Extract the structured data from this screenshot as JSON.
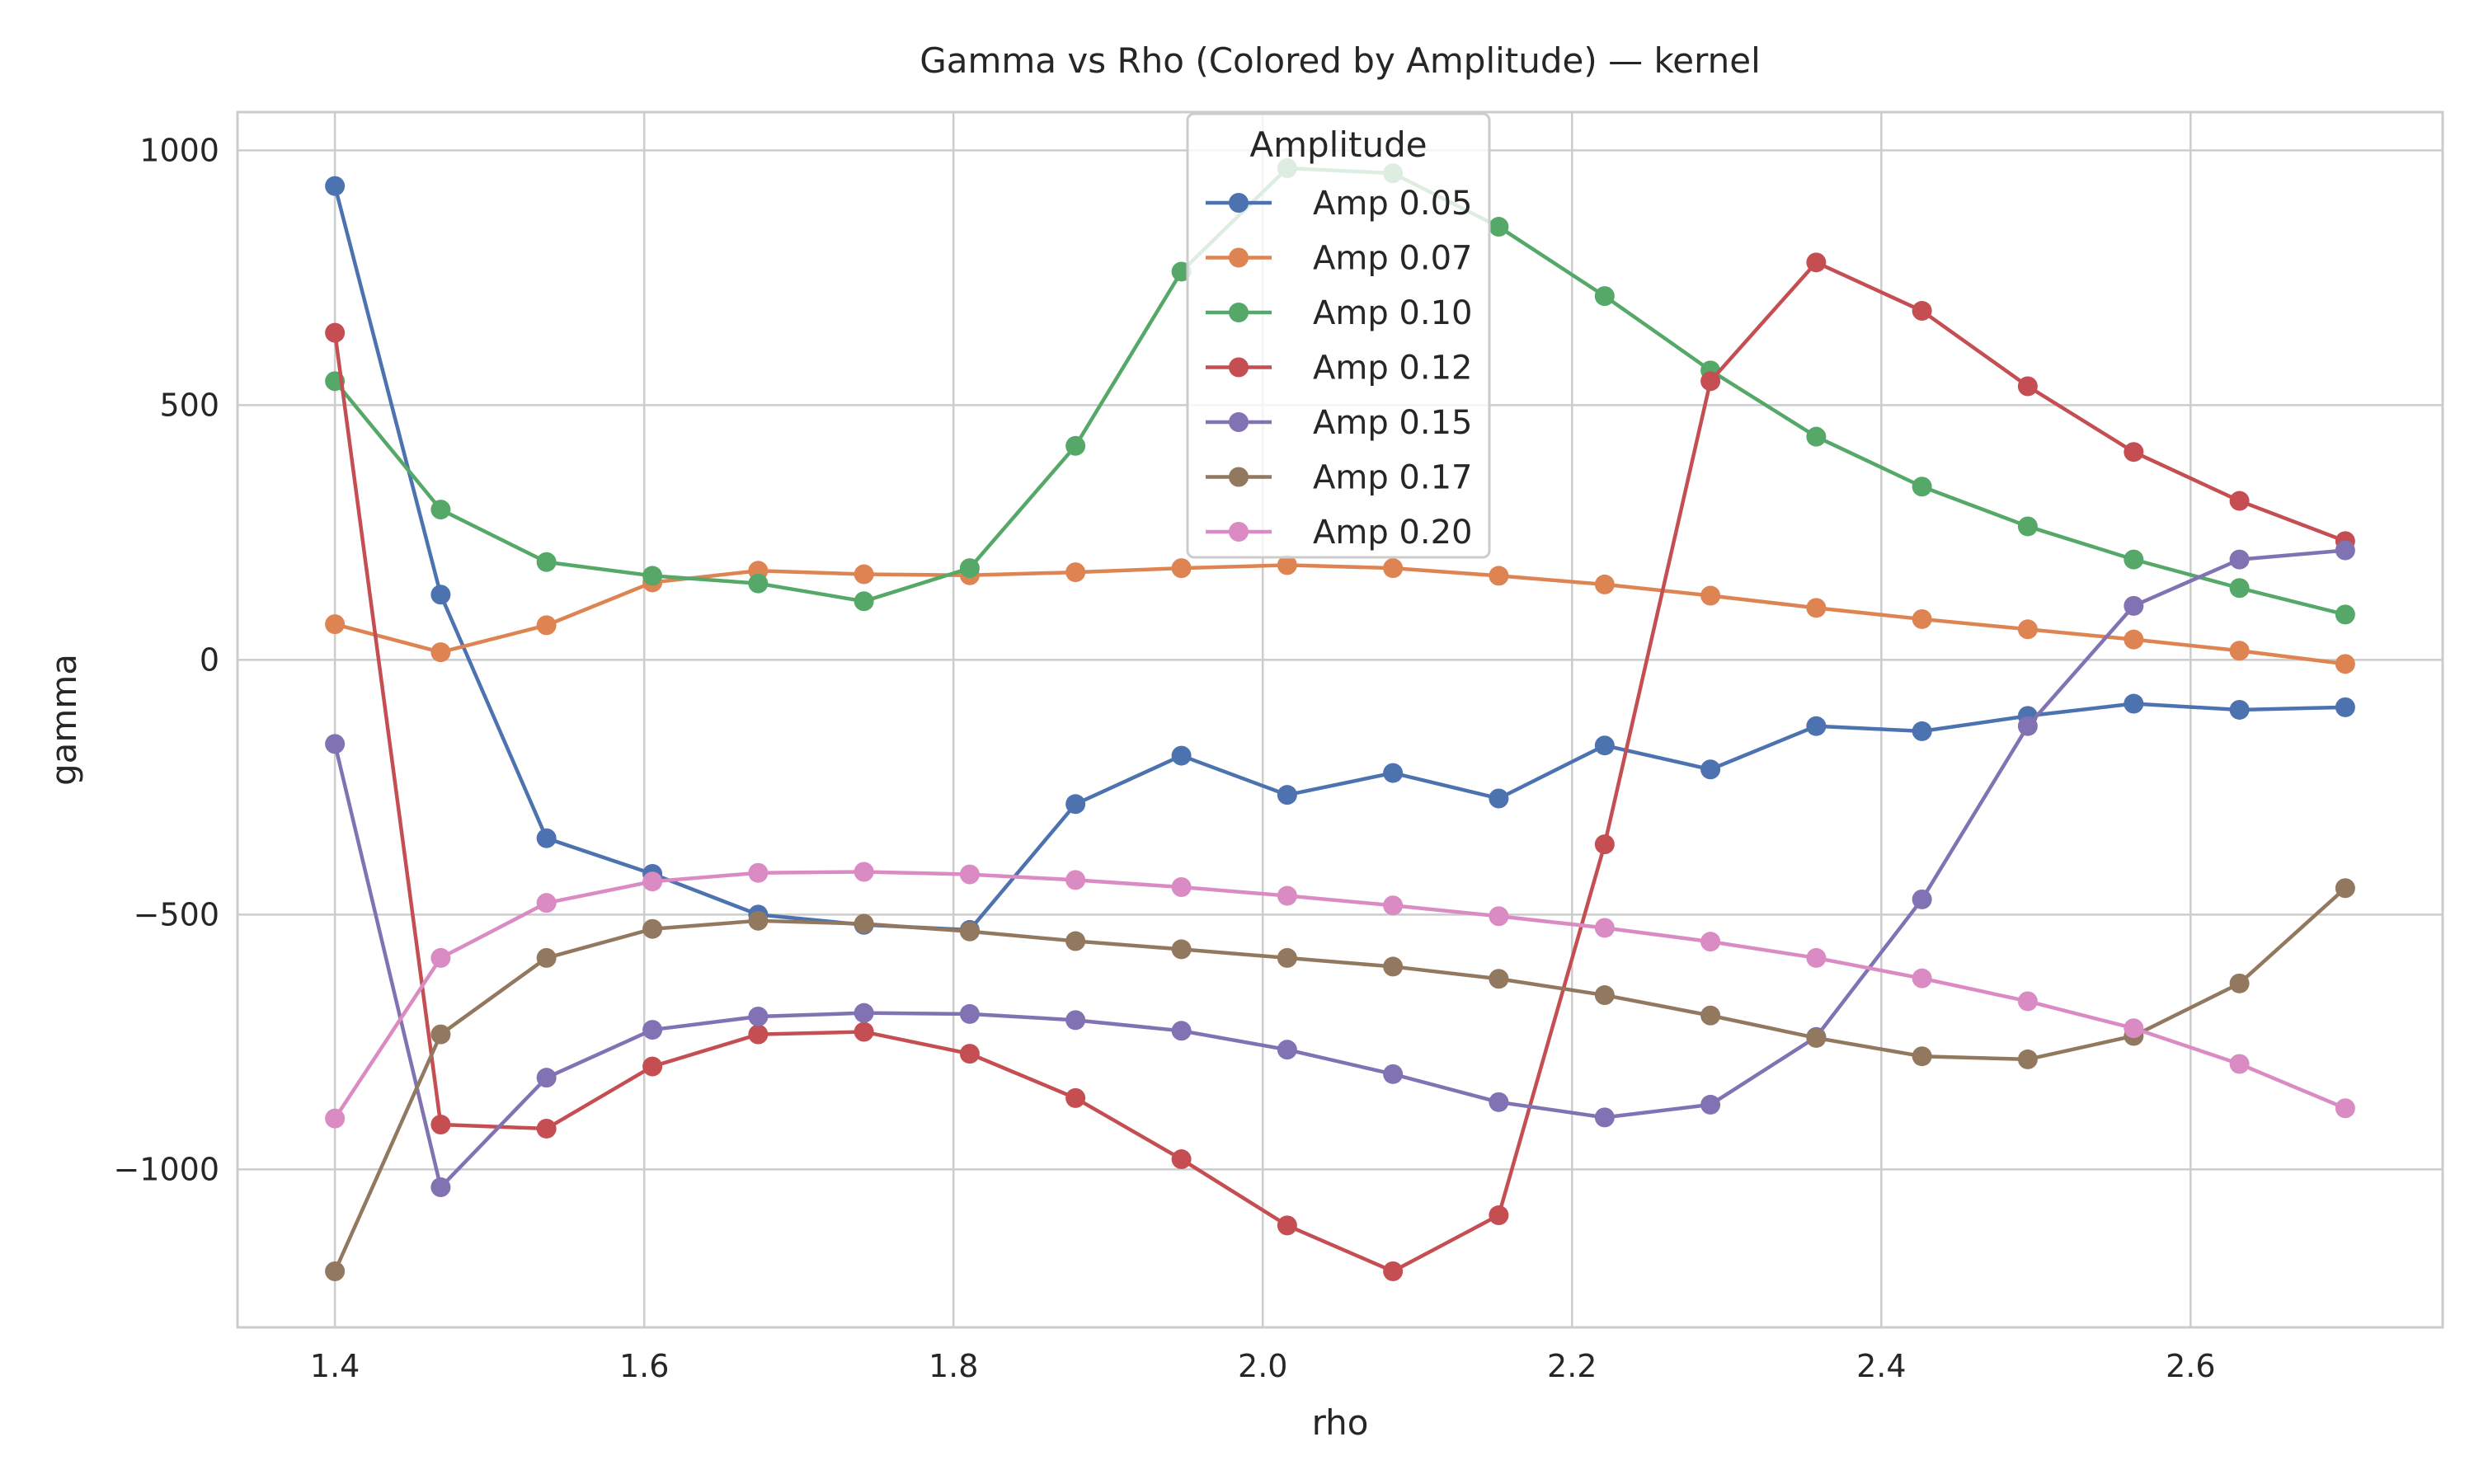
{
  "chart_data": {
    "type": "line",
    "title": "Gamma vs Rho (Colored by Amplitude) — kernel",
    "xlabel": "rho",
    "ylabel": "gamma",
    "xlim": [
      1.337,
      2.763
    ],
    "ylim": [
      -1310,
      1075
    ],
    "xticks": [
      1.4,
      1.6,
      1.8,
      2.0,
      2.2,
      2.4,
      2.6
    ],
    "xtick_labels": [
      "1.4",
      "1.6",
      "1.8",
      "2.0",
      "2.2",
      "2.4",
      "2.6"
    ],
    "yticks": [
      1000,
      500,
      0,
      -500,
      -1000
    ],
    "ytick_labels": [
      "1000",
      "500",
      "0",
      "−500",
      "−1000"
    ],
    "grid": true,
    "legend_title": "Amplitude",
    "legend_position": "top-center",
    "x": [
      1.4,
      1.4684,
      1.5368,
      1.6053,
      1.6737,
      1.7421,
      1.8105,
      1.8789,
      1.9474,
      2.0158,
      2.0842,
      2.1526,
      2.2211,
      2.2895,
      2.3579,
      2.4263,
      2.4947,
      2.5632,
      2.6316,
      2.7
    ],
    "series": [
      {
        "name": "Amp 0.05",
        "color": "#4c72b0",
        "values": [
          930,
          128,
          -350,
          -420,
          -500,
          -520,
          -530,
          -283,
          -188,
          -265,
          -222,
          -272,
          -168,
          -215,
          -130,
          -140,
          -110,
          -86,
          -98,
          -93
        ]
      },
      {
        "name": "Amp 0.07",
        "color": "#dd8452",
        "values": [
          70,
          15,
          68,
          152,
          175,
          168,
          166,
          172,
          180,
          186,
          180,
          165,
          148,
          126,
          102,
          80,
          60,
          40,
          18,
          -8
        ]
      },
      {
        "name": "Amp 0.10",
        "color": "#55a868",
        "values": [
          547,
          295,
          192,
          165,
          150,
          115,
          180,
          420,
          762,
          965,
          955,
          850,
          714,
          568,
          438,
          340,
          262,
          197,
          141,
          89
        ]
      },
      {
        "name": "Amp 0.12",
        "color": "#c44e52",
        "values": [
          642,
          -912,
          -920,
          -798,
          -735,
          -730,
          -773,
          -860,
          -980,
          -1110,
          -1200,
          -1090,
          -362,
          547,
          780,
          685,
          537,
          408,
          312,
          233
        ]
      },
      {
        "name": "Amp 0.15",
        "color": "#8172b3",
        "values": [
          -165,
          -1035,
          -820,
          -726,
          -700,
          -693,
          -695,
          -707,
          -728,
          -765,
          -813,
          -868,
          -898,
          -873,
          -740,
          -470,
          -130,
          106,
          197,
          215
        ]
      },
      {
        "name": "Amp 0.17",
        "color": "#937860",
        "values": [
          -1200,
          -735,
          -585,
          -528,
          -512,
          -518,
          -533,
          -552,
          -568,
          -585,
          -602,
          -626,
          -658,
          -698,
          -742,
          -778,
          -784,
          -738,
          -635,
          -448
        ]
      },
      {
        "name": "Amp 0.20",
        "color": "#da8bc3",
        "values": [
          -900,
          -585,
          -477,
          -435,
          -418,
          -416,
          -421,
          -432,
          -446,
          -463,
          -482,
          -503,
          -526,
          -553,
          -585,
          -625,
          -670,
          -723,
          -793,
          -880
        ]
      }
    ]
  }
}
